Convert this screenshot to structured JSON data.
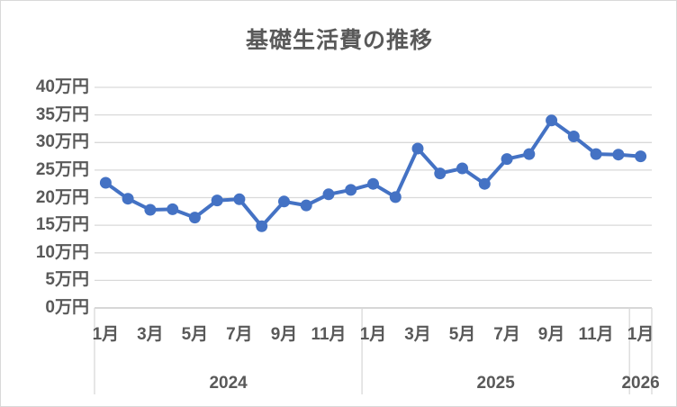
{
  "chart_data": {
    "type": "line",
    "title": "基礎生活費の推移",
    "unit": "万円",
    "ylim": [
      0,
      40
    ],
    "y_ticks": [
      {
        "value": 40,
        "label": "40万円"
      },
      {
        "value": 35,
        "label": "35万円"
      },
      {
        "value": 30,
        "label": "30万円"
      },
      {
        "value": 25,
        "label": "25万円"
      },
      {
        "value": 20,
        "label": "20万円"
      },
      {
        "value": 15,
        "label": "15万円"
      },
      {
        "value": 10,
        "label": "10万円"
      },
      {
        "value": 5,
        "label": "5万円"
      },
      {
        "value": 0,
        "label": "0万円"
      }
    ],
    "x_month_ticks": [
      {
        "label": "1月",
        "index": 0
      },
      {
        "label": "3月",
        "index": 2
      },
      {
        "label": "5月",
        "index": 4
      },
      {
        "label": "7月",
        "index": 6
      },
      {
        "label": "9月",
        "index": 8
      },
      {
        "label": "11月",
        "index": 10
      },
      {
        "label": "1月",
        "index": 12
      },
      {
        "label": "3月",
        "index": 14
      },
      {
        "label": "5月",
        "index": 16
      },
      {
        "label": "7月",
        "index": 18
      },
      {
        "label": "9月",
        "index": 20
      },
      {
        "label": "11月",
        "index": 22
      },
      {
        "label": "1月",
        "index": 24
      }
    ],
    "x_year_groups": [
      {
        "label": "2024",
        "start": 0,
        "count": 12
      },
      {
        "label": "2025",
        "start": 12,
        "count": 12
      },
      {
        "label": "2026",
        "start": 24,
        "count": 1
      }
    ],
    "categories": [
      "2024-1月",
      "2024-2月",
      "2024-3月",
      "2024-4月",
      "2024-5月",
      "2024-6月",
      "2024-7月",
      "2024-8月",
      "2024-9月",
      "2024-10月",
      "2024-11月",
      "2024-12月",
      "2025-1月",
      "2025-2月",
      "2025-3月",
      "2025-4月",
      "2025-5月",
      "2025-6月",
      "2025-7月",
      "2025-8月",
      "2025-9月",
      "2025-10月",
      "2025-11月",
      "2025-12月",
      "2026-1月"
    ],
    "values": [
      22.7,
      19.8,
      17.8,
      17.9,
      16.4,
      19.5,
      19.7,
      14.8,
      19.3,
      18.6,
      20.6,
      21.4,
      22.5,
      20.1,
      28.9,
      24.4,
      25.3,
      22.5,
      27.0,
      27.9,
      34.0,
      31.1,
      27.9,
      27.8,
      27.5
    ],
    "grid": true,
    "legend": false
  },
  "colors": {
    "line": "#4472C4",
    "marker": "#4472C4",
    "gridline": "#d9d9d9",
    "axis_line": "#bfbfbf",
    "divider": "#d9d9d9",
    "text": "#595959",
    "border": "#d9d9d9",
    "background": "#ffffff"
  }
}
